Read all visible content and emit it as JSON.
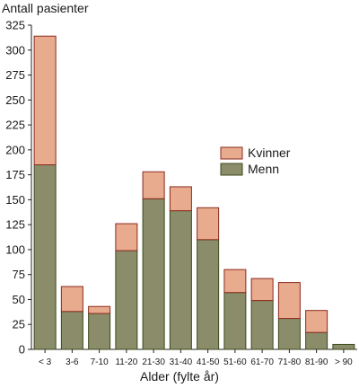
{
  "chart_data": {
    "type": "bar",
    "stacked": true,
    "title": "",
    "ylabel": "Antall pasienter",
    "xlabel": "Alder (fylte år)",
    "ylim": [
      0,
      325
    ],
    "yticks": [
      0,
      25,
      50,
      75,
      100,
      125,
      150,
      175,
      200,
      225,
      250,
      275,
      300,
      325
    ],
    "categories": [
      "< 3",
      "3-6",
      "7-10",
      "11-20",
      "21-30",
      "31-40",
      "41-50",
      "51-60",
      "61-70",
      "71-80",
      "81-90",
      "> 90"
    ],
    "series": [
      {
        "name": "Menn",
        "color": "#8a8c6a",
        "stroke": "#3d4a1e",
        "values": [
          185,
          38,
          36,
          99,
          151,
          139,
          110,
          57,
          49,
          31,
          17,
          5
        ]
      },
      {
        "name": "Kvinner",
        "color": "#e8ab8e",
        "stroke": "#8b2a1e",
        "values": [
          129,
          25,
          7,
          27,
          27,
          24,
          32,
          23,
          22,
          36,
          22,
          0
        ]
      }
    ],
    "legend": {
      "position": "right-middle",
      "items": [
        "Kvinner",
        "Menn"
      ]
    },
    "grid": false
  }
}
